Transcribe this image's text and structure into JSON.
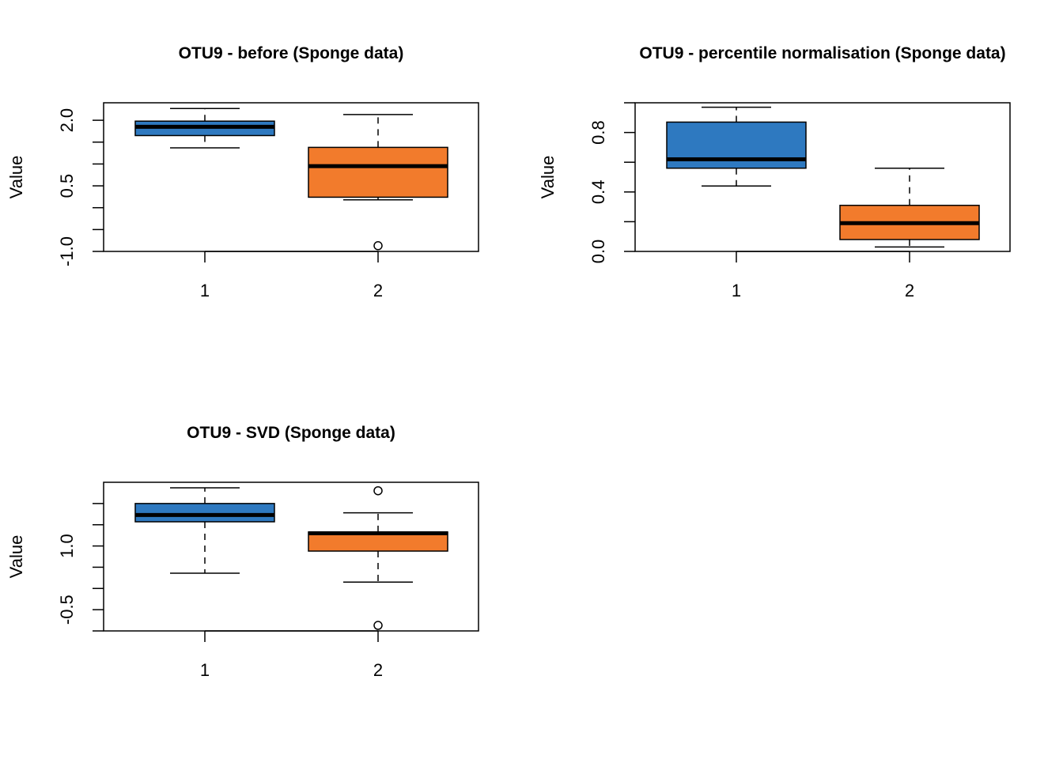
{
  "colors": {
    "group1": "#2E79C0",
    "group2": "#F27B2C",
    "line": "#000000"
  },
  "chart_data": [
    {
      "type": "box",
      "title": "OTU9 - before (Sponge data)",
      "ylabel": "Value",
      "categories": [
        "1",
        "2"
      ],
      "ylim": [
        -1.0,
        2.4
      ],
      "yticks": [
        -1.0,
        -0.5,
        0.0,
        0.5,
        1.0,
        1.5,
        2.0
      ],
      "ytick_labels": [
        "-1.0",
        "",
        "",
        "0.5",
        "",
        "",
        "2.0"
      ],
      "boxes": [
        {
          "name": "1",
          "whislo": 1.37,
          "q1": 1.65,
          "med": 1.85,
          "q3": 1.98,
          "whishi": 2.27,
          "outliers": []
        },
        {
          "name": "2",
          "whislo": 0.18,
          "q1": 0.24,
          "med": 0.95,
          "q3": 1.38,
          "whishi": 2.13,
          "outliers": [
            -0.87
          ]
        }
      ]
    },
    {
      "type": "box",
      "title": "OTU9 - percentile normalisation  (Sponge data)",
      "ylabel": "Value",
      "categories": [
        "1",
        "2"
      ],
      "ylim": [
        0.0,
        1.0
      ],
      "yticks": [
        0.0,
        0.2,
        0.4,
        0.6,
        0.8,
        1.0
      ],
      "ytick_labels": [
        "0.0",
        "",
        "0.4",
        "",
        "0.8",
        ""
      ],
      "boxes": [
        {
          "name": "1",
          "whislo": 0.44,
          "q1": 0.56,
          "med": 0.62,
          "q3": 0.87,
          "whishi": 0.97,
          "outliers": []
        },
        {
          "name": "2",
          "whislo": 0.03,
          "q1": 0.08,
          "med": 0.19,
          "q3": 0.31,
          "whishi": 0.56,
          "outliers": []
        }
      ]
    },
    {
      "type": "box",
      "title": "OTU9 - SVD  (Sponge data)",
      "ylabel": "Value",
      "categories": [
        "1",
        "2"
      ],
      "ylim": [
        -1.0,
        2.5
      ],
      "yticks": [
        -1.0,
        -0.5,
        0.0,
        0.5,
        1.0,
        1.5,
        2.0
      ],
      "ytick_labels": [
        "",
        "-0.5",
        "",
        "",
        "1.0",
        "",
        ""
      ],
      "boxes": [
        {
          "name": "1",
          "whislo": 0.36,
          "q1": 1.57,
          "med": 1.73,
          "q3": 2.0,
          "whishi": 2.37,
          "outliers": []
        },
        {
          "name": "2",
          "whislo": 0.15,
          "q1": 0.88,
          "med": 1.3,
          "q3": 1.33,
          "whishi": 1.78,
          "outliers": [
            2.3,
            -0.87
          ]
        }
      ]
    }
  ]
}
